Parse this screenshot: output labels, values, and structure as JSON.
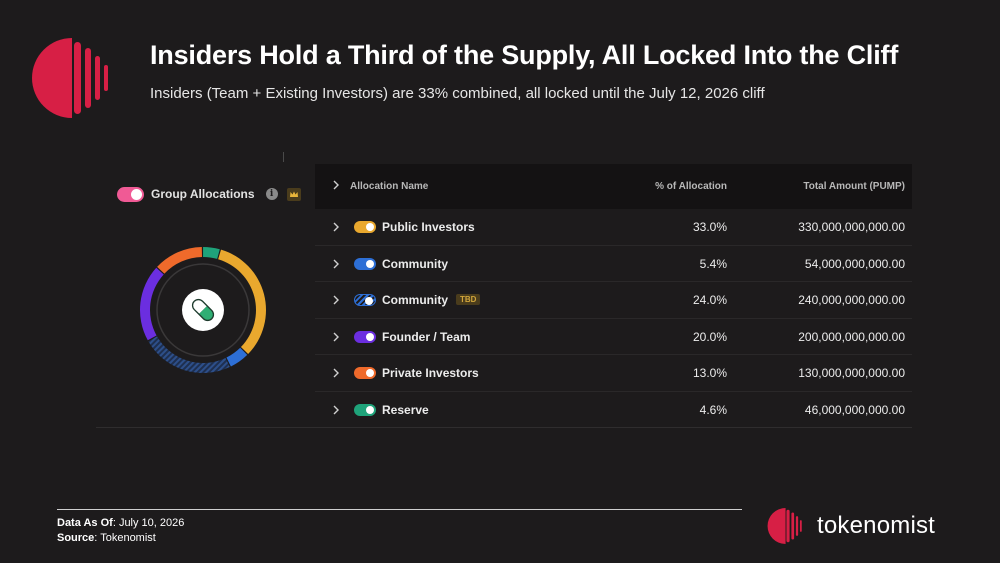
{
  "header": {
    "title": "Insiders Hold a Third of the Supply, All Locked Into the Cliff",
    "subtitle": "Insiders (Team + Existing Investors) are 33% combined, all locked until the July 12, 2026 cliff"
  },
  "panel": {
    "group_label": "Group Allocations",
    "info_glyph": "i",
    "icons": [
      "toggle-icon",
      "info-icon",
      "crown-icon",
      "pill-icon",
      "chevron-right-icon"
    ]
  },
  "chart_data": {
    "type": "table",
    "columns": [
      "Allocation Name",
      "% of Allocation",
      "Total Amount (PUMP)"
    ],
    "rows": [
      {
        "name": "Public Investors",
        "pct": "33.0%",
        "amount": "330,000,000,000.00",
        "value": 33.0,
        "color": "#e9a82e",
        "tag": "",
        "hatched": false
      },
      {
        "name": "Community",
        "pct": "5.4%",
        "amount": "54,000,000,000.00",
        "value": 5.4,
        "color": "#2d6fd6",
        "tag": "",
        "hatched": false
      },
      {
        "name": "Community",
        "pct": "24.0%",
        "amount": "240,000,000,000.00",
        "value": 24.0,
        "color": "#2d6fd6",
        "tag": "TBD",
        "hatched": true
      },
      {
        "name": "Founder / Team",
        "pct": "20.0%",
        "amount": "200,000,000,000.00",
        "value": 20.0,
        "color": "#6b2ee0",
        "tag": "",
        "hatched": false
      },
      {
        "name": "Private Investors",
        "pct": "13.0%",
        "amount": "130,000,000,000.00",
        "value": 13.0,
        "color": "#ef6a2b",
        "tag": "",
        "hatched": false
      },
      {
        "name": "Reserve",
        "pct": "4.6%",
        "amount": "46,000,000,000.00",
        "value": 4.6,
        "color": "#1fa37a",
        "tag": "",
        "hatched": false
      }
    ],
    "donut_order": [
      0,
      1,
      2,
      3,
      4,
      5
    ]
  },
  "footer": {
    "date_label": "Data As Of",
    "date_value": ": July 10, 2026",
    "source_label": "Source",
    "source_value": ": Tokenomist"
  },
  "brand": {
    "name": "tokenomist",
    "color": "#d71f45"
  },
  "colors": {
    "accent": "#d71f45",
    "toggle": "#f05a95",
    "background": "#1d1b1c"
  }
}
